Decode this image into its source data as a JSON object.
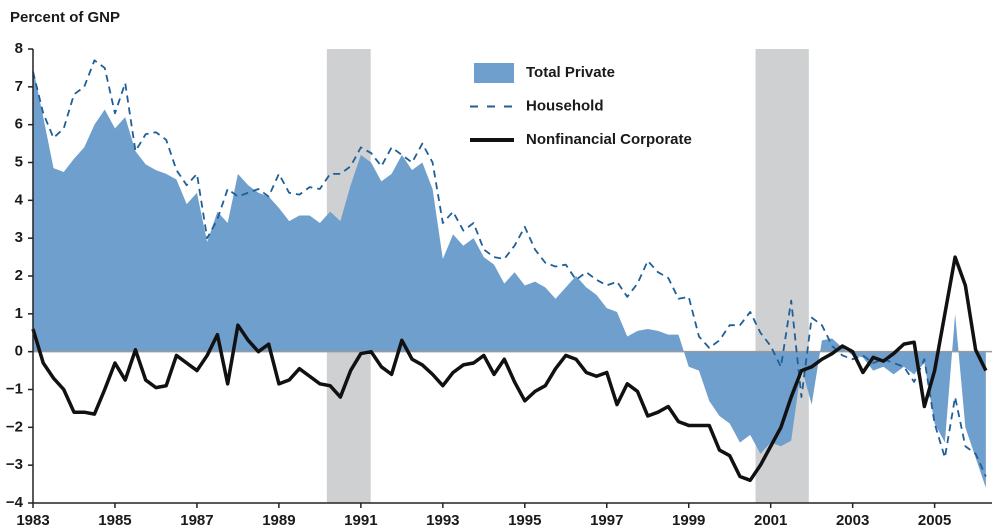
{
  "chart_data": {
    "type": "line",
    "axis_label": "Percent of GNP",
    "legend": "top",
    "recessions": [
      [
        1990.17,
        1991.24
      ],
      [
        2000.63,
        2001.93
      ]
    ],
    "recession_color": "#cfd0d2",
    "xlim": [
      1983,
      2006.4
    ],
    "xticks": [
      1983,
      1985,
      1987,
      1989,
      1991,
      1993,
      1995,
      1997,
      1999,
      2001,
      2003,
      2005
    ],
    "ylim": [
      -4,
      8
    ],
    "yticks": [
      8,
      7,
      6,
      5,
      4,
      3,
      2,
      1,
      0,
      {
        "value": -1,
        "label": "−1"
      },
      {
        "value": -2,
        "label": "−2"
      },
      {
        "value": -3,
        "label": "−3"
      },
      {
        "value": -4,
        "label": "−4"
      }
    ],
    "x": [
      1983,
      1983.25,
      1983.5,
      1983.75,
      1984,
      1984.25,
      1984.5,
      1984.75,
      1985,
      1985.25,
      1985.5,
      1985.75,
      1986,
      1986.25,
      1986.5,
      1986.75,
      1987,
      1987.25,
      1987.5,
      1987.75,
      1988,
      1988.25,
      1988.5,
      1988.75,
      1989,
      1989.25,
      1989.5,
      1989.75,
      1990,
      1990.25,
      1990.5,
      1990.75,
      1991,
      1991.25,
      1991.5,
      1991.75,
      1992,
      1992.25,
      1992.5,
      1992.75,
      1993,
      1993.25,
      1993.5,
      1993.75,
      1994,
      1994.25,
      1994.5,
      1994.75,
      1995,
      1995.25,
      1995.5,
      1995.75,
      1996,
      1996.25,
      1996.5,
      1996.75,
      1997,
      1997.25,
      1997.5,
      1997.75,
      1998,
      1998.25,
      1998.5,
      1998.75,
      1999,
      1999.25,
      1999.5,
      1999.75,
      2000,
      2000.25,
      2000.5,
      2000.75,
      2001,
      2001.25,
      2001.5,
      2001.75,
      2002,
      2002.25,
      2002.5,
      2002.75,
      2003,
      2003.25,
      2003.5,
      2003.75,
      2004,
      2004.25,
      2004.5,
      2004.75,
      2005,
      2005.25,
      2005.5,
      2005.75,
      2006,
      2006.25
    ],
    "series": [
      {
        "name": "Total Private",
        "style": "area",
        "color": "#6f9fcc",
        "values": [
          7.5,
          6.2,
          4.85,
          4.75,
          5.1,
          5.4,
          6.0,
          6.4,
          5.9,
          6.2,
          5.3,
          4.95,
          4.8,
          4.7,
          4.55,
          3.9,
          4.2,
          2.9,
          3.7,
          3.4,
          4.7,
          4.4,
          4.2,
          4.1,
          3.8,
          3.45,
          3.6,
          3.6,
          3.4,
          3.7,
          3.45,
          4.4,
          5.2,
          5.0,
          4.5,
          4.7,
          5.2,
          4.8,
          5.0,
          4.3,
          2.45,
          3.1,
          2.8,
          3.0,
          2.5,
          2.3,
          1.8,
          2.1,
          1.75,
          1.85,
          1.7,
          1.4,
          1.7,
          2.0,
          1.7,
          1.5,
          1.15,
          1.05,
          0.4,
          0.55,
          0.6,
          0.55,
          0.45,
          0.45,
          -0.4,
          -0.5,
          -1.3,
          -1.7,
          -1.9,
          -2.4,
          -2.2,
          -2.7,
          -2.4,
          -2.5,
          -2.35,
          -0.4,
          -1.4,
          0.3,
          0.35,
          0.1,
          -0.1,
          -0.15,
          -0.5,
          -0.4,
          -0.6,
          -0.4,
          -0.6,
          -0.3,
          -1.9,
          -2.4,
          1.0,
          -2.0,
          -2.8,
          -3.6
        ]
      },
      {
        "name": "Household",
        "style": "dashed",
        "color": "#1f5f98",
        "values": [
          7.4,
          6.3,
          5.65,
          5.9,
          6.8,
          7.0,
          7.7,
          7.5,
          6.3,
          7.1,
          5.3,
          5.75,
          5.8,
          5.6,
          4.8,
          4.4,
          4.7,
          3.0,
          3.5,
          4.3,
          4.1,
          4.2,
          4.3,
          4.1,
          4.7,
          4.2,
          4.15,
          4.35,
          4.3,
          4.7,
          4.7,
          4.9,
          5.4,
          5.25,
          4.9,
          5.4,
          5.2,
          5.0,
          5.5,
          5.0,
          3.4,
          3.7,
          3.2,
          3.4,
          2.7,
          2.5,
          2.45,
          2.8,
          3.3,
          2.7,
          2.35,
          2.25,
          2.3,
          1.9,
          2.1,
          1.9,
          1.75,
          1.85,
          1.45,
          1.8,
          2.4,
          2.1,
          1.95,
          1.4,
          1.45,
          0.4,
          0.1,
          0.3,
          0.7,
          0.7,
          1.05,
          0.5,
          0.15,
          -0.4,
          1.35,
          -1.2,
          0.9,
          0.7,
          0.15,
          -0.1,
          -0.2,
          -0.1,
          -0.3,
          -0.2,
          -0.3,
          -0.4,
          -0.8,
          -0.2,
          -1.9,
          -2.8,
          -1.2,
          -2.5,
          -2.7,
          -3.3
        ]
      },
      {
        "name": "Nonfinancial Corporate",
        "style": "solid",
        "color": "#111111",
        "values": [
          0.6,
          -0.3,
          -0.7,
          -1.0,
          -1.6,
          -1.6,
          -1.65,
          -1.0,
          -0.3,
          -0.75,
          0.05,
          -0.75,
          -0.95,
          -0.9,
          -0.1,
          -0.3,
          -0.5,
          -0.1,
          0.45,
          -0.85,
          0.7,
          0.3,
          0.0,
          0.2,
          -0.85,
          -0.75,
          -0.45,
          -0.65,
          -0.85,
          -0.9,
          -1.2,
          -0.5,
          -0.05,
          0.0,
          -0.4,
          -0.6,
          0.3,
          -0.2,
          -0.35,
          -0.6,
          -0.9,
          -0.55,
          -0.35,
          -0.3,
          -0.1,
          -0.6,
          -0.2,
          -0.8,
          -1.3,
          -1.05,
          -0.9,
          -0.45,
          -0.1,
          -0.2,
          -0.55,
          -0.65,
          -0.55,
          -1.4,
          -0.85,
          -1.05,
          -1.7,
          -1.6,
          -1.45,
          -1.85,
          -1.95,
          -1.95,
          -1.95,
          -2.6,
          -2.75,
          -3.3,
          -3.4,
          -3.0,
          -2.5,
          -2.0,
          -1.2,
          -0.5,
          -0.4,
          -0.2,
          -0.05,
          0.15,
          0.0,
          -0.55,
          -0.15,
          -0.25,
          -0.05,
          0.2,
          0.25,
          -1.45,
          -0.5,
          1.0,
          2.5,
          1.75,
          0.05,
          -0.5
        ]
      }
    ]
  }
}
